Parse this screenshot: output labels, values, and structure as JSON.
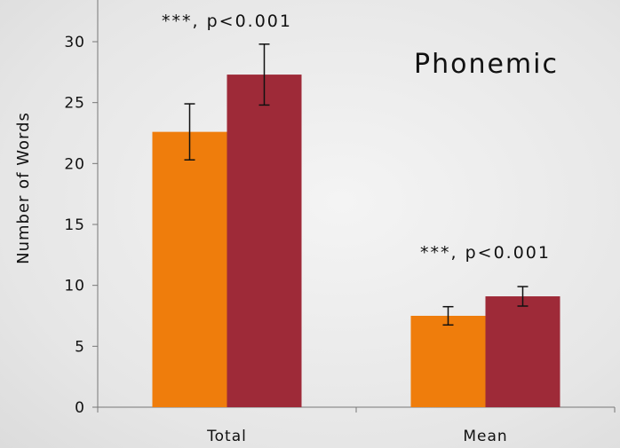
{
  "chart_data": {
    "type": "bar",
    "title": "Phonemic",
    "ylabel": "Number of Words",
    "xlabel": "",
    "categories": [
      "Total",
      "Mean"
    ],
    "ylim": [
      0,
      30
    ],
    "yticks": [
      0,
      5,
      10,
      15,
      20,
      25,
      30
    ],
    "grid": false,
    "series": [
      {
        "color": "#ef7d0c",
        "values": [
          22.6,
          7.5
        ],
        "errors": [
          2.3,
          0.75
        ]
      },
      {
        "color": "#9e2a38",
        "values": [
          27.3,
          9.1
        ],
        "errors": [
          2.5,
          0.8
        ]
      }
    ],
    "annotations": [
      "***, p<0.001",
      "***, p<0.001"
    ]
  }
}
